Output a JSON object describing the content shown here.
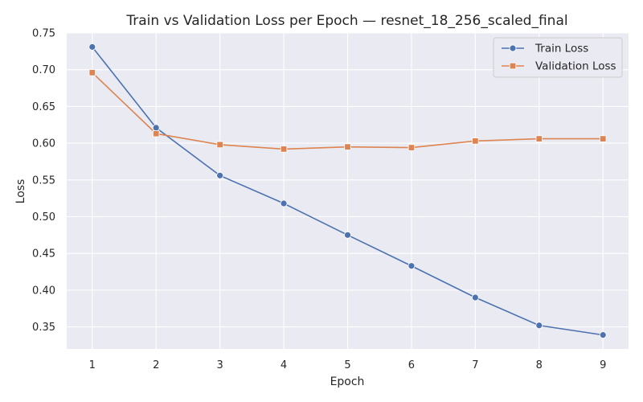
{
  "chart_data": {
    "type": "line",
    "title": "Train vs Validation Loss per Epoch — resnet_18_256_scaled_final",
    "xlabel": "Epoch",
    "ylabel": "Loss",
    "x": [
      1,
      2,
      3,
      4,
      5,
      6,
      7,
      8,
      9
    ],
    "xticks": [
      "1",
      "2",
      "3",
      "4",
      "5",
      "6",
      "7",
      "8",
      "9"
    ],
    "xlim": [
      0.6,
      9.4
    ],
    "ylim": [
      0.32,
      0.75
    ],
    "yticks": [
      "0.35",
      "0.40",
      "0.45",
      "0.50",
      "0.55",
      "0.60",
      "0.65",
      "0.70",
      "0.75"
    ],
    "grid": true,
    "legend_position": "top-right",
    "series": [
      {
        "name": "Train Loss",
        "color": "#4c72b0",
        "marker": "circle",
        "values": [
          0.731,
          0.621,
          0.556,
          0.518,
          0.475,
          0.433,
          0.39,
          0.352,
          0.339
        ]
      },
      {
        "name": "Validation Loss",
        "color": "#dd8452",
        "marker": "square",
        "values": [
          0.696,
          0.613,
          0.598,
          0.592,
          0.595,
          0.594,
          0.603,
          0.606,
          0.606
        ]
      }
    ]
  }
}
